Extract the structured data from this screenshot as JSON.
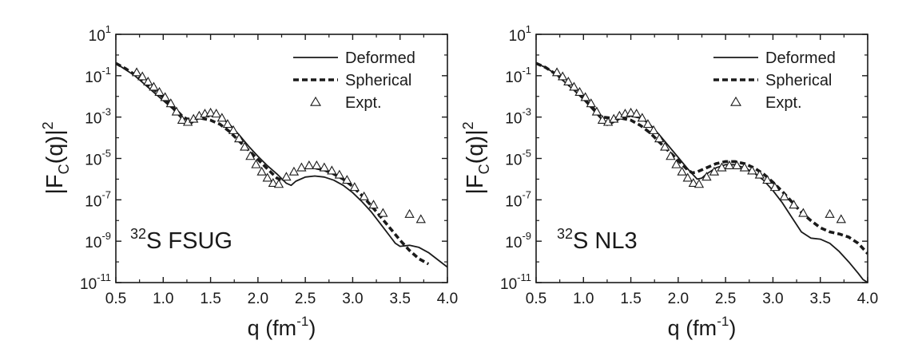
{
  "chart_data": [
    {
      "type": "line",
      "panel_label": {
        "sup": "32",
        "text": "S FSUG"
      },
      "ylabel": {
        "pre": "|F",
        "sub": "C",
        "mid": "(q)|",
        "sup": "2"
      },
      "xlabel": {
        "pre": "q (fm",
        "sup": "-1",
        "post": ")"
      },
      "x_ticks": [
        "0.5",
        "1.0",
        "1.5",
        "2.0",
        "2.5",
        "3.0",
        "3.5",
        "4.0"
      ],
      "y_ticks": [
        {
          "base": "10",
          "exp": "1"
        },
        {
          "base": "10",
          "exp": "-1"
        },
        {
          "base": "10",
          "exp": "-3"
        },
        {
          "base": "10",
          "exp": "-5"
        },
        {
          "base": "10",
          "exp": "-7"
        },
        {
          "base": "10",
          "exp": "-9"
        },
        {
          "base": "10",
          "exp": "-11"
        }
      ],
      "xlim": [
        0.5,
        4.0
      ],
      "ylim_log10": [
        -11,
        1
      ],
      "yscale": "log",
      "legend_position": "top-right",
      "series": [
        {
          "name": "Deformed",
          "style": "solid",
          "color": "#1a1a1a",
          "x": [
            0.5,
            0.6,
            0.7,
            0.8,
            0.9,
            1.0,
            1.1,
            1.2,
            1.25,
            1.3,
            1.4,
            1.5,
            1.6,
            1.7,
            1.8,
            1.9,
            2.0,
            2.1,
            2.2,
            2.3,
            2.35,
            2.4,
            2.5,
            2.6,
            2.7,
            2.8,
            2.9,
            3.0,
            3.1,
            3.2,
            3.3,
            3.4,
            3.45,
            3.5,
            3.6,
            3.7,
            3.8,
            3.9,
            4.0
          ],
          "log10_y": [
            -0.4,
            -0.7,
            -1.0,
            -1.4,
            -1.8,
            -2.2,
            -2.6,
            -3.1,
            -3.35,
            -3.3,
            -2.95,
            -2.85,
            -3.0,
            -3.35,
            -3.85,
            -4.4,
            -4.9,
            -5.35,
            -5.75,
            -6.2,
            -6.3,
            -6.1,
            -5.9,
            -5.85,
            -5.9,
            -6.05,
            -6.3,
            -6.65,
            -7.1,
            -7.6,
            -8.2,
            -8.8,
            -9.1,
            -9.25,
            -9.2,
            -9.3,
            -9.55,
            -9.9,
            -10.25
          ]
        },
        {
          "name": "Spherical",
          "style": "dashed",
          "color": "#1a1a1a",
          "x": [
            0.5,
            0.6,
            0.7,
            0.8,
            0.9,
            1.0,
            1.1,
            1.2,
            1.25,
            1.3,
            1.4,
            1.5,
            1.6,
            1.7,
            1.8,
            1.9,
            2.0,
            2.1,
            2.2,
            2.25,
            2.3,
            2.4,
            2.5,
            2.6,
            2.7,
            2.8,
            2.9,
            3.0,
            3.1,
            3.2,
            3.3,
            3.4,
            3.5,
            3.6,
            3.7,
            3.8
          ],
          "log10_y": [
            -0.4,
            -0.65,
            -0.95,
            -1.3,
            -1.65,
            -2.05,
            -2.5,
            -2.95,
            -3.1,
            -3.1,
            -3.05,
            -3.15,
            -3.35,
            -3.7,
            -4.15,
            -4.6,
            -5.05,
            -5.5,
            -5.95,
            -6.05,
            -5.9,
            -5.6,
            -5.45,
            -5.45,
            -5.55,
            -5.75,
            -6.0,
            -6.35,
            -6.8,
            -7.3,
            -7.85,
            -8.4,
            -8.95,
            -9.45,
            -9.85,
            -10.1
          ]
        },
        {
          "name": "Expt.",
          "style": "triangle",
          "color": "#1a1a1a",
          "x": [
            0.72,
            0.78,
            0.84,
            0.9,
            0.96,
            1.02,
            1.08,
            1.14,
            1.2,
            1.26,
            1.32,
            1.38,
            1.44,
            1.5,
            1.56,
            1.62,
            1.68,
            1.74,
            1.8,
            1.86,
            1.92,
            1.98,
            2.04,
            2.1,
            2.16,
            2.22,
            2.3,
            2.38,
            2.46,
            2.54,
            2.62,
            2.7,
            2.78,
            2.86,
            2.94,
            3.02,
            3.12,
            3.22,
            3.32,
            3.6,
            3.72
          ],
          "log10_y": [
            -0.85,
            -1.05,
            -1.3,
            -1.55,
            -1.8,
            -2.05,
            -2.35,
            -2.75,
            -3.15,
            -3.25,
            -3.1,
            -2.95,
            -2.85,
            -2.8,
            -2.85,
            -3.05,
            -3.35,
            -3.65,
            -4.05,
            -4.45,
            -4.9,
            -5.3,
            -5.65,
            -5.95,
            -6.2,
            -6.25,
            -5.9,
            -5.65,
            -5.45,
            -5.35,
            -5.35,
            -5.45,
            -5.6,
            -5.8,
            -6.05,
            -6.4,
            -6.85,
            -7.25,
            -7.65,
            -7.7,
            -7.95
          ]
        }
      ]
    },
    {
      "type": "line",
      "panel_label": {
        "sup": "32",
        "text": "S NL3"
      },
      "ylabel": {
        "pre": "|F",
        "sub": "C",
        "mid": "(q)|",
        "sup": "2"
      },
      "xlabel": {
        "pre": "q (fm",
        "sup": "-1",
        "post": ")"
      },
      "x_ticks": [
        "0.5",
        "1.0",
        "1.5",
        "2.0",
        "2.5",
        "3.0",
        "3.5",
        "4.0"
      ],
      "y_ticks": [
        {
          "base": "10",
          "exp": "1"
        },
        {
          "base": "10",
          "exp": "-1"
        },
        {
          "base": "10",
          "exp": "-3"
        },
        {
          "base": "10",
          "exp": "-5"
        },
        {
          "base": "10",
          "exp": "-7"
        },
        {
          "base": "10",
          "exp": "-9"
        },
        {
          "base": "10",
          "exp": "-11"
        }
      ],
      "xlim": [
        0.5,
        4.0
      ],
      "ylim_log10": [
        -11,
        1
      ],
      "yscale": "log",
      "legend_position": "top-right",
      "series": [
        {
          "name": "Deformed",
          "style": "solid",
          "color": "#1a1a1a",
          "x": [
            0.5,
            0.6,
            0.7,
            0.8,
            0.9,
            1.0,
            1.1,
            1.2,
            1.25,
            1.3,
            1.4,
            1.5,
            1.6,
            1.7,
            1.8,
            1.9,
            2.0,
            2.1,
            2.2,
            2.25,
            2.3,
            2.4,
            2.5,
            2.6,
            2.7,
            2.8,
            2.9,
            3.0,
            3.1,
            3.2,
            3.3,
            3.4,
            3.5,
            3.6,
            3.7,
            3.8,
            3.9,
            3.95,
            4.0
          ],
          "log10_y": [
            -0.4,
            -0.6,
            -0.9,
            -1.3,
            -1.7,
            -2.15,
            -2.65,
            -3.15,
            -3.4,
            -3.3,
            -3.05,
            -2.95,
            -3.05,
            -3.35,
            -3.85,
            -4.4,
            -4.95,
            -5.5,
            -6.0,
            -5.95,
            -5.75,
            -5.45,
            -5.3,
            -5.3,
            -5.45,
            -5.7,
            -6.05,
            -6.55,
            -7.15,
            -7.85,
            -8.55,
            -8.85,
            -8.9,
            -9.1,
            -9.5,
            -10.0,
            -10.55,
            -10.85,
            -11.0
          ]
        },
        {
          "name": "Spherical",
          "style": "dashed",
          "color": "#1a1a1a",
          "x": [
            0.5,
            0.6,
            0.7,
            0.8,
            0.9,
            1.0,
            1.1,
            1.15,
            1.2,
            1.3,
            1.4,
            1.5,
            1.6,
            1.7,
            1.8,
            1.9,
            2.0,
            2.1,
            2.15,
            2.2,
            2.3,
            2.4,
            2.5,
            2.6,
            2.7,
            2.8,
            2.9,
            3.0,
            3.1,
            3.2,
            3.3,
            3.4,
            3.5,
            3.6,
            3.7,
            3.8,
            3.9,
            4.0
          ],
          "log10_y": [
            -0.4,
            -0.6,
            -0.9,
            -1.25,
            -1.65,
            -2.1,
            -2.55,
            -2.85,
            -3.0,
            -3.05,
            -3.05,
            -3.15,
            -3.4,
            -3.75,
            -4.2,
            -4.65,
            -5.1,
            -5.55,
            -5.7,
            -5.65,
            -5.45,
            -5.25,
            -5.15,
            -5.15,
            -5.25,
            -5.45,
            -5.75,
            -6.15,
            -6.6,
            -7.1,
            -7.6,
            -8.0,
            -8.35,
            -8.55,
            -8.65,
            -8.8,
            -9.1,
            -9.6
          ]
        },
        {
          "name": "Expt.",
          "style": "triangle",
          "color": "#1a1a1a",
          "x": [
            0.72,
            0.78,
            0.84,
            0.9,
            0.96,
            1.02,
            1.08,
            1.14,
            1.2,
            1.26,
            1.32,
            1.38,
            1.44,
            1.5,
            1.56,
            1.62,
            1.68,
            1.74,
            1.8,
            1.86,
            1.92,
            1.98,
            2.04,
            2.1,
            2.16,
            2.22,
            2.3,
            2.38,
            2.46,
            2.54,
            2.62,
            2.7,
            2.78,
            2.86,
            2.94,
            3.02,
            3.12,
            3.22,
            3.32,
            3.6,
            3.72
          ],
          "log10_y": [
            -0.85,
            -1.05,
            -1.3,
            -1.55,
            -1.8,
            -2.05,
            -2.35,
            -2.75,
            -3.15,
            -3.25,
            -3.1,
            -2.95,
            -2.85,
            -2.8,
            -2.85,
            -3.05,
            -3.35,
            -3.65,
            -4.05,
            -4.45,
            -4.9,
            -5.3,
            -5.65,
            -5.95,
            -6.2,
            -6.25,
            -5.9,
            -5.65,
            -5.45,
            -5.35,
            -5.35,
            -5.45,
            -5.6,
            -5.8,
            -6.05,
            -6.4,
            -6.85,
            -7.25,
            -7.65,
            -7.7,
            -7.95
          ]
        }
      ]
    }
  ]
}
